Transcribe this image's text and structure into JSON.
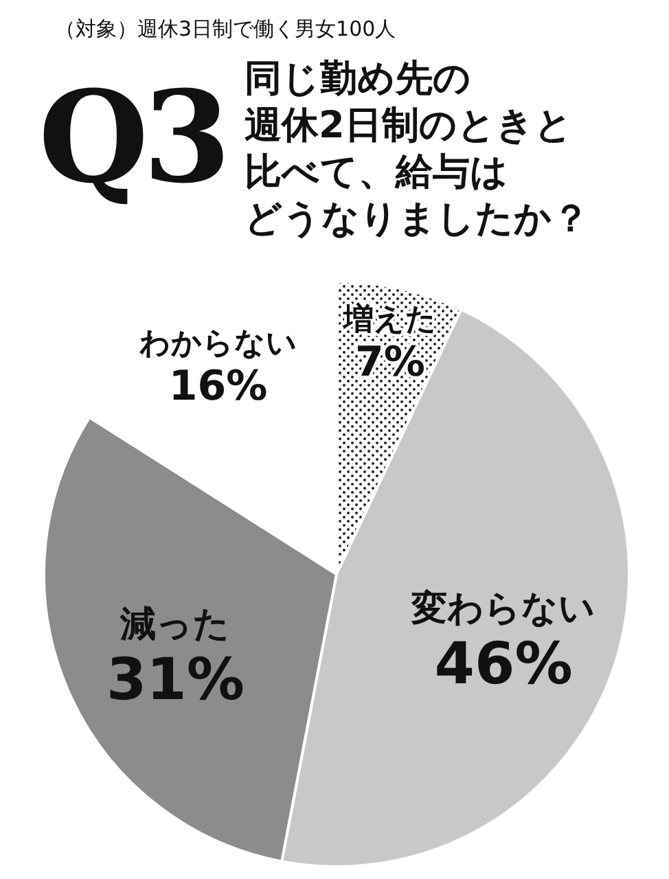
{
  "chart_data": {
    "type": "pie",
    "title": "Q3",
    "annotations": [
      "（対象）週休3日制で働く男女100人",
      "同じ勤め先の",
      "週休2日制のときと",
      "比べて、給与は",
      "どうなりましたか？"
    ],
    "categories": [
      "増えた",
      "変わらない",
      "減った",
      "わからない"
    ],
    "values": [
      7,
      46,
      31,
      16
    ],
    "value_labels": [
      "7%",
      "46%",
      "31%",
      "16%"
    ],
    "colors": [
      "#ffffff",
      "#c8c8c8",
      "#8c8c8c",
      "#ffffff"
    ]
  }
}
